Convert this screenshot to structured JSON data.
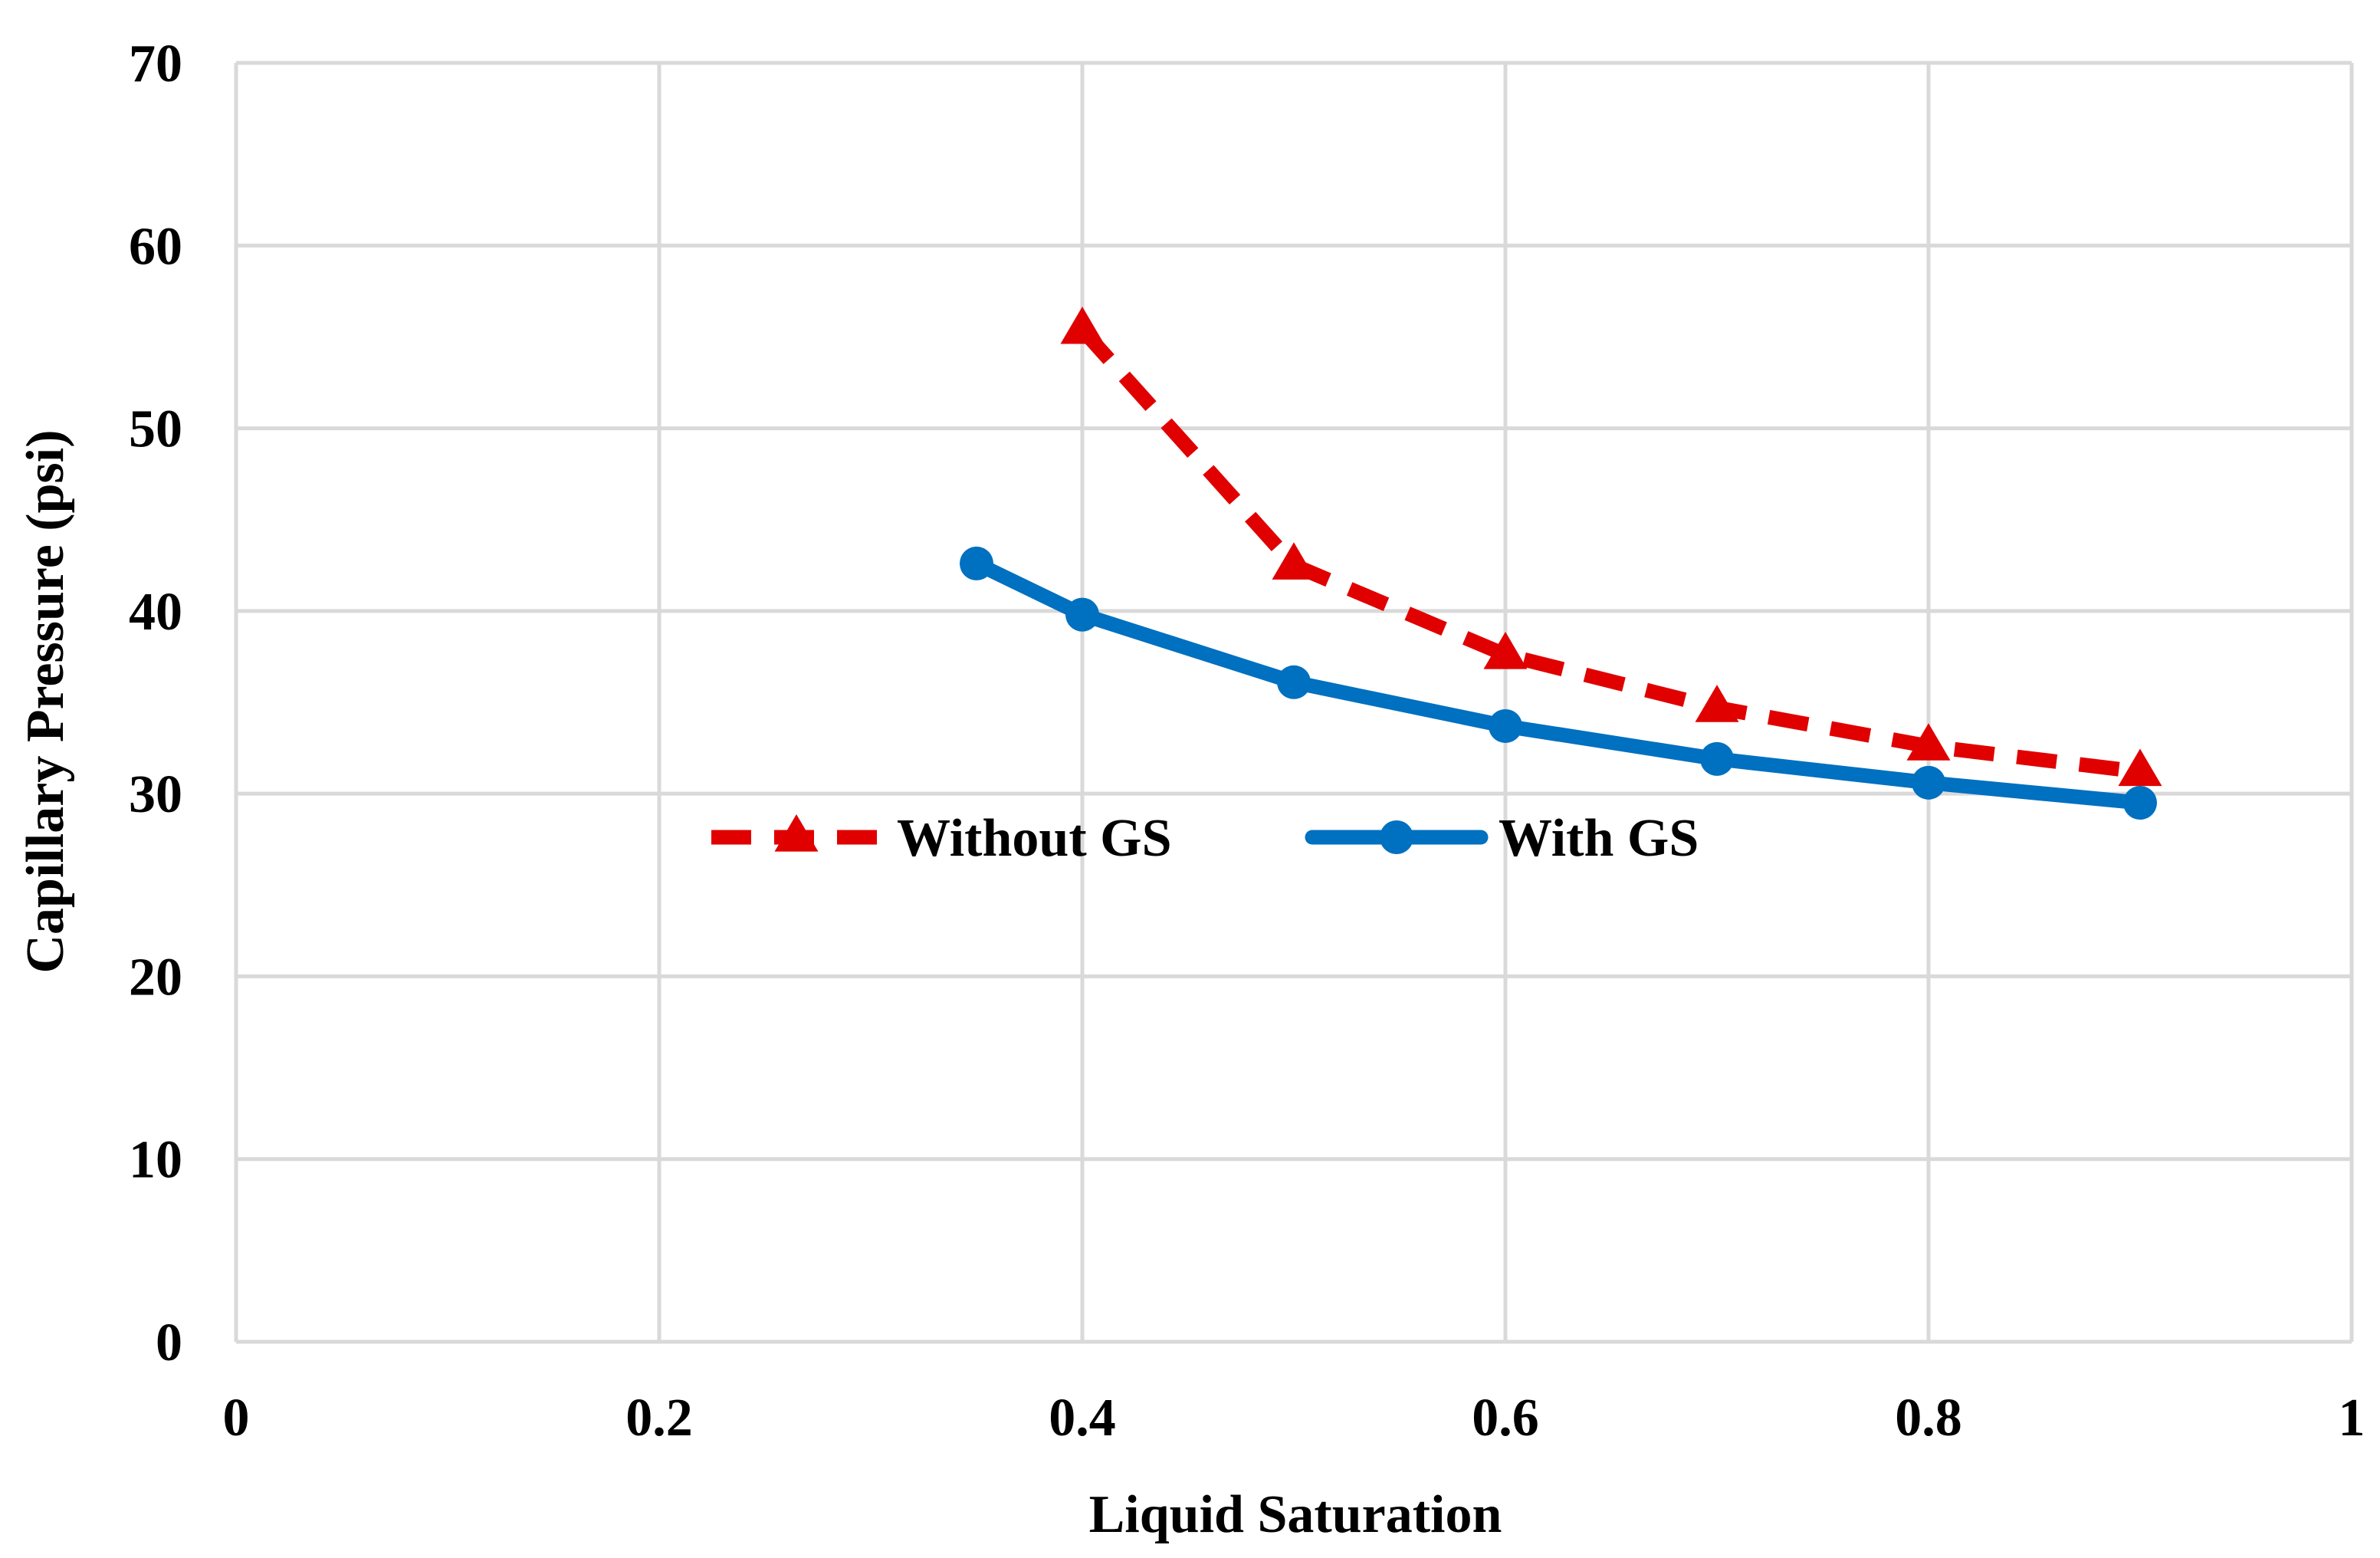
{
  "chart_data": {
    "type": "line",
    "title": "",
    "xlabel": "Liquid Saturation",
    "ylabel": "Capillary Pressure (psi)",
    "xlim": [
      0,
      1
    ],
    "ylim": [
      0,
      70
    ],
    "xticks": [
      0,
      0.2,
      0.4,
      0.6,
      0.8,
      1
    ],
    "xtick_labels": [
      "0",
      "0.2",
      "0.4",
      "0.6",
      "0.8",
      "1"
    ],
    "yticks": [
      0,
      10,
      20,
      30,
      40,
      50,
      60,
      70
    ],
    "ytick_labels": [
      "0",
      "10",
      "20",
      "30",
      "40",
      "50",
      "60",
      "70"
    ],
    "grid": true,
    "legend_position": "center",
    "series": [
      {
        "name": "Without GS",
        "color": "#E00000",
        "line_style": "dashed",
        "marker": "triangle",
        "x": [
          0.4,
          0.5,
          0.6,
          0.7,
          0.8,
          0.9
        ],
        "y": [
          55.4,
          42.5,
          37.6,
          34.7,
          32.6,
          31.2
        ]
      },
      {
        "name": "With GS",
        "color": "#0070C0",
        "line_style": "solid",
        "marker": "circle",
        "x": [
          0.35,
          0.4,
          0.5,
          0.6,
          0.7,
          0.8,
          0.9
        ],
        "y": [
          42.6,
          39.8,
          36.1,
          33.7,
          31.9,
          30.6,
          29.5
        ]
      }
    ]
  }
}
